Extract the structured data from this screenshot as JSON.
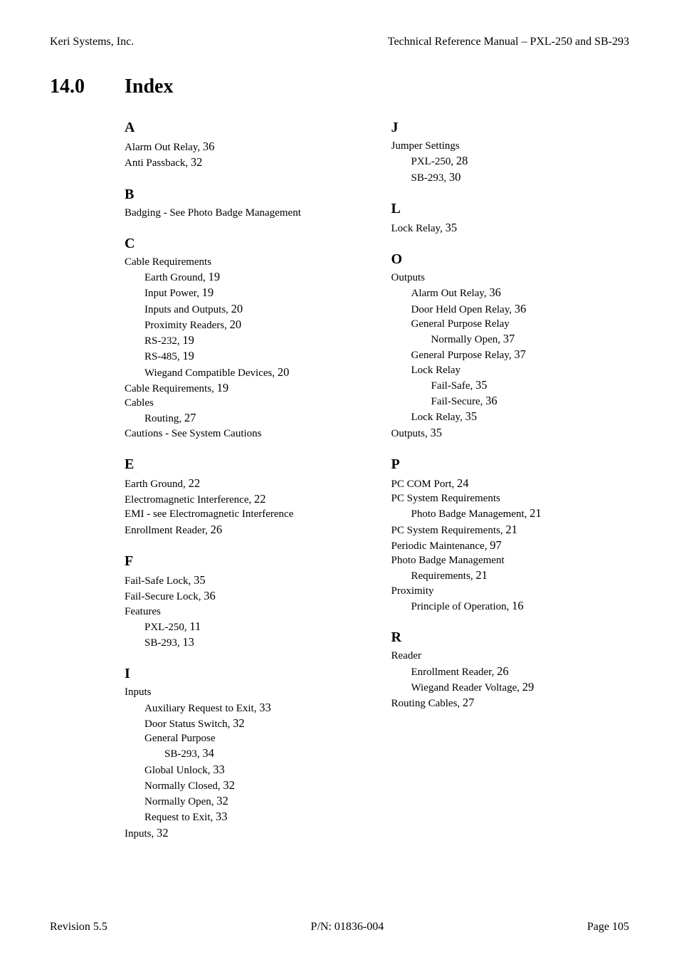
{
  "header": {
    "left": "Keri Systems, Inc.",
    "right": "Technical Reference Manual – PXL-250 and SB-293"
  },
  "section": {
    "number": "14.0",
    "title": "Index"
  },
  "footer": {
    "left": "Revision 5.5",
    "center": "P/N: 01836-004",
    "right": "Page 105"
  },
  "left_col": [
    {
      "type": "letter",
      "text": "A"
    },
    {
      "type": "entry",
      "level": 0,
      "text": "Alarm Out Relay, ",
      "page": "36"
    },
    {
      "type": "entry",
      "level": 0,
      "text": "Anti Passback, ",
      "page": "32"
    },
    {
      "type": "letter",
      "text": "B"
    },
    {
      "type": "entry",
      "level": 0,
      "text": "Badging - See Photo Badge Management",
      "page": ""
    },
    {
      "type": "letter",
      "text": "C"
    },
    {
      "type": "entry",
      "level": 0,
      "text": "Cable Requirements",
      "page": ""
    },
    {
      "type": "entry",
      "level": 1,
      "text": "Earth Ground, ",
      "page": "19"
    },
    {
      "type": "entry",
      "level": 1,
      "text": "Input Power, ",
      "page": "19"
    },
    {
      "type": "entry",
      "level": 1,
      "text": "Inputs and Outputs, ",
      "page": "20"
    },
    {
      "type": "entry",
      "level": 1,
      "text": "Proximity Readers, ",
      "page": "20"
    },
    {
      "type": "entry",
      "level": 1,
      "text": "RS-232, ",
      "page": "19"
    },
    {
      "type": "entry",
      "level": 1,
      "text": "RS-485, ",
      "page": "19"
    },
    {
      "type": "entry",
      "level": 1,
      "text": "Wiegand Compatible Devices, ",
      "page": "20"
    },
    {
      "type": "entry",
      "level": 0,
      "text": "Cable Requirements, ",
      "page": "19"
    },
    {
      "type": "entry",
      "level": 0,
      "text": "Cables",
      "page": ""
    },
    {
      "type": "entry",
      "level": 1,
      "text": "Routing, ",
      "page": "27"
    },
    {
      "type": "entry",
      "level": 0,
      "text": "Cautions - See System Cautions",
      "page": ""
    },
    {
      "type": "letter",
      "text": "E"
    },
    {
      "type": "entry",
      "level": 0,
      "text": "Earth Ground, ",
      "page": "22"
    },
    {
      "type": "entry",
      "level": 0,
      "text": "Electromagnetic Interference, ",
      "page": "22"
    },
    {
      "type": "entry",
      "level": 0,
      "text": "EMI - see Electromagnetic Interference",
      "page": ""
    },
    {
      "type": "entry",
      "level": 0,
      "text": "Enrollment Reader, ",
      "page": "26"
    },
    {
      "type": "letter",
      "text": "F"
    },
    {
      "type": "entry",
      "level": 0,
      "text": "Fail-Safe Lock, ",
      "page": "35"
    },
    {
      "type": "entry",
      "level": 0,
      "text": "Fail-Secure Lock, ",
      "page": "36"
    },
    {
      "type": "entry",
      "level": 0,
      "text": "Features",
      "page": ""
    },
    {
      "type": "entry",
      "level": 1,
      "text": "PXL-250, ",
      "page": "11"
    },
    {
      "type": "entry",
      "level": 1,
      "text": "SB-293, ",
      "page": "13"
    },
    {
      "type": "letter",
      "text": "I"
    },
    {
      "type": "entry",
      "level": 0,
      "text": "Inputs",
      "page": ""
    },
    {
      "type": "entry",
      "level": 1,
      "text": "Auxiliary Request to Exit, ",
      "page": "33"
    },
    {
      "type": "entry",
      "level": 1,
      "text": "Door Status Switch, ",
      "page": "32"
    },
    {
      "type": "entry",
      "level": 1,
      "text": "General Purpose",
      "page": ""
    },
    {
      "type": "entry",
      "level": 2,
      "text": "SB-293, ",
      "page": "34"
    },
    {
      "type": "entry",
      "level": 1,
      "text": "Global Unlock, ",
      "page": "33"
    },
    {
      "type": "entry",
      "level": 1,
      "text": "Normally Closed, ",
      "page": "32"
    },
    {
      "type": "entry",
      "level": 1,
      "text": "Normally Open, ",
      "page": "32"
    },
    {
      "type": "entry",
      "level": 1,
      "text": "Request to Exit, ",
      "page": "33"
    },
    {
      "type": "entry",
      "level": 0,
      "text": "Inputs, ",
      "page": "32"
    }
  ],
  "right_col": [
    {
      "type": "letter",
      "text": "J"
    },
    {
      "type": "entry",
      "level": 0,
      "text": "Jumper Settings",
      "page": ""
    },
    {
      "type": "entry",
      "level": 1,
      "text": "PXL-250, ",
      "page": "28"
    },
    {
      "type": "entry",
      "level": 1,
      "text": "SB-293, ",
      "page": "30"
    },
    {
      "type": "letter",
      "text": "L"
    },
    {
      "type": "entry",
      "level": 0,
      "text": "Lock Relay, ",
      "page": "35"
    },
    {
      "type": "letter",
      "text": "O"
    },
    {
      "type": "entry",
      "level": 0,
      "text": "Outputs",
      "page": ""
    },
    {
      "type": "entry",
      "level": 1,
      "text": "Alarm Out Relay, ",
      "page": "36"
    },
    {
      "type": "entry",
      "level": 1,
      "text": "Door Held Open Relay, ",
      "page": "36"
    },
    {
      "type": "entry",
      "level": 1,
      "text": "General Purpose Relay",
      "page": ""
    },
    {
      "type": "entry",
      "level": 2,
      "text": "Normally Open, ",
      "page": "37"
    },
    {
      "type": "entry",
      "level": 1,
      "text": "General Purpose Relay, ",
      "page": "37"
    },
    {
      "type": "entry",
      "level": 1,
      "text": "Lock Relay",
      "page": ""
    },
    {
      "type": "entry",
      "level": 2,
      "text": "Fail-Safe, ",
      "page": "35"
    },
    {
      "type": "entry",
      "level": 2,
      "text": "Fail-Secure, ",
      "page": "36"
    },
    {
      "type": "entry",
      "level": 1,
      "text": "Lock Relay, ",
      "page": "35"
    },
    {
      "type": "entry",
      "level": 0,
      "text": "Outputs, ",
      "page": "35"
    },
    {
      "type": "letter",
      "text": "P"
    },
    {
      "type": "entry",
      "level": 0,
      "text": "PC COM Port, ",
      "page": "24"
    },
    {
      "type": "entry",
      "level": 0,
      "text": "PC System Requirements",
      "page": ""
    },
    {
      "type": "entry",
      "level": 1,
      "text": "Photo Badge Management, ",
      "page": "21"
    },
    {
      "type": "entry",
      "level": 0,
      "text": "PC System Requirements, ",
      "page": "21"
    },
    {
      "type": "entry",
      "level": 0,
      "text": "Periodic Maintenance, ",
      "page": "97"
    },
    {
      "type": "entry",
      "level": 0,
      "text": "Photo Badge Management",
      "page": ""
    },
    {
      "type": "entry",
      "level": 1,
      "text": "Requirements, ",
      "page": "21"
    },
    {
      "type": "entry",
      "level": 0,
      "text": "Proximity",
      "page": ""
    },
    {
      "type": "entry",
      "level": 1,
      "text": "Principle of Operation, ",
      "page": "16"
    },
    {
      "type": "letter",
      "text": "R"
    },
    {
      "type": "entry",
      "level": 0,
      "text": "Reader",
      "page": ""
    },
    {
      "type": "entry",
      "level": 1,
      "text": "Enrollment Reader, ",
      "page": "26"
    },
    {
      "type": "entry",
      "level": 1,
      "text": "Wiegand Reader Voltage, ",
      "page": "29"
    },
    {
      "type": "entry",
      "level": 0,
      "text": "Routing Cables, ",
      "page": "27"
    }
  ]
}
